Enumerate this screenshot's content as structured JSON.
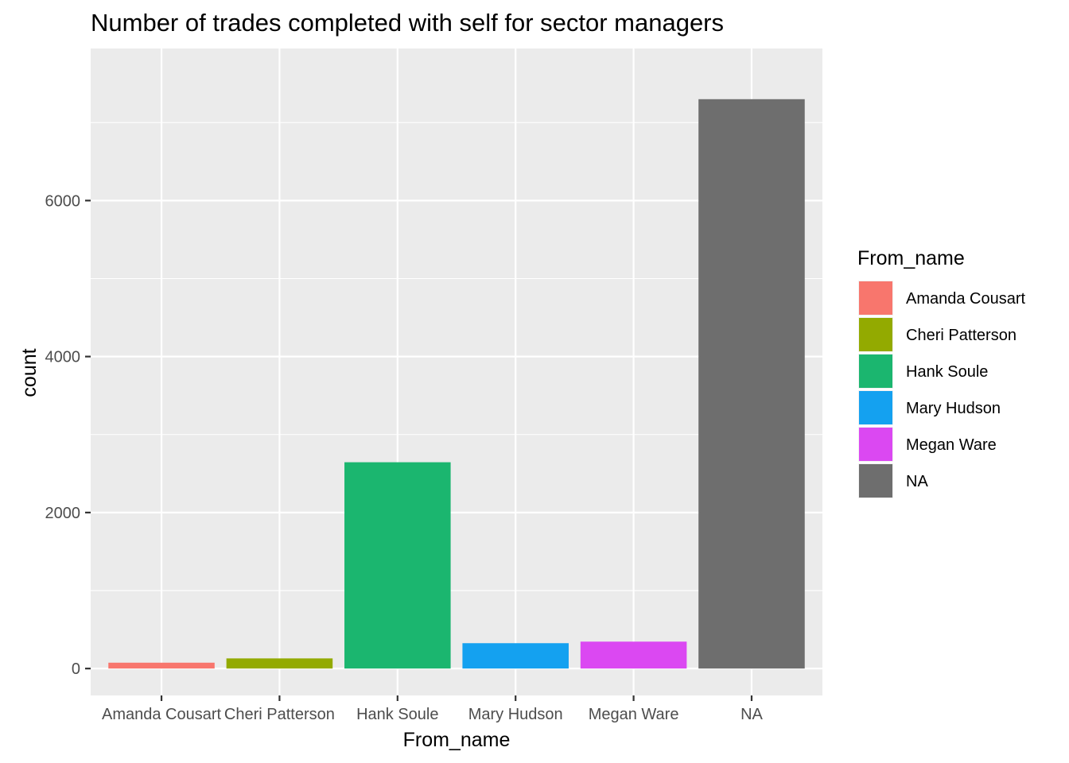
{
  "chart_data": {
    "type": "bar",
    "title": "Number of trades completed with self for sector managers",
    "xlabel": "From_name",
    "ylabel": "count",
    "categories": [
      "Amanda Cousart",
      "Cheri Patterson",
      "Hank Soule",
      "Mary Hudson",
      "Megan Ware",
      "NA"
    ],
    "values": [
      75,
      130,
      2645,
      325,
      345,
      7300
    ],
    "colors": [
      "#F8766D",
      "#93AA00",
      "#1BB66F",
      "#14A1F0",
      "#DB48F2",
      "#6E6E6E"
    ],
    "ylim": [
      -345,
      7950
    ],
    "yticks": [
      0,
      2000,
      4000,
      6000
    ],
    "ytick_labels": [
      "0",
      "2000",
      "4000",
      "6000"
    ],
    "grid": true,
    "legend": {
      "title": "From_name",
      "placement": "right",
      "entries": [
        "Amanda Cousart",
        "Cheri Patterson",
        "Hank Soule",
        "Mary Hudson",
        "Megan Ware",
        "NA"
      ]
    }
  }
}
